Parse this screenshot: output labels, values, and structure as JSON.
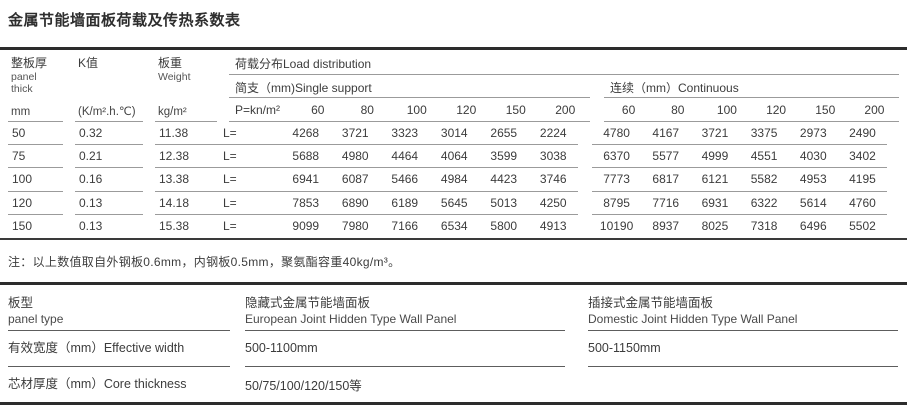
{
  "title": "金属节能墙面板荷载及传热系数表",
  "load_table": {
    "columns": {
      "thick": {
        "zh": "整板厚",
        "en_line1": "panel",
        "en_line2": "thick",
        "unit": "mm"
      },
      "k_value": {
        "zh": "K值",
        "unit": "(K/m².h.℃)"
      },
      "weight": {
        "zh": "板重",
        "en": "Weight",
        "unit": "kg/m²"
      }
    },
    "load_distribution_label": "荷载分布Load distribution",
    "single_support_label": "简支（mm)Single support",
    "continuous_label": "连续（mm）Continuous",
    "p_label": "P=kn/m²",
    "l_label": "L=",
    "span_headers": [
      "60",
      "80",
      "100",
      "120",
      "150",
      "200"
    ],
    "rows": [
      {
        "thick": "50",
        "k": "0.32",
        "weight": "11.38",
        "single": [
          "4268",
          "3721",
          "3323",
          "3014",
          "2655",
          "2224"
        ],
        "continuous": [
          "4780",
          "4167",
          "3721",
          "3375",
          "2973",
          "2490"
        ]
      },
      {
        "thick": "75",
        "k": "0.21",
        "weight": "12.38",
        "single": [
          "5688",
          "4980",
          "4464",
          "4064",
          "3599",
          "3038"
        ],
        "continuous": [
          "6370",
          "5577",
          "4999",
          "4551",
          "4030",
          "3402"
        ]
      },
      {
        "thick": "100",
        "k": "0.16",
        "weight": "13.38",
        "single": [
          "6941",
          "6087",
          "5466",
          "4984",
          "4423",
          "3746"
        ],
        "continuous": [
          "7773",
          "6817",
          "6121",
          "5582",
          "4953",
          "4195"
        ]
      },
      {
        "thick": "120",
        "k": "0.13",
        "weight": "14.18",
        "single": [
          "7853",
          "6890",
          "6189",
          "5645",
          "5013",
          "4250"
        ],
        "continuous": [
          "8795",
          "7716",
          "6931",
          "6322",
          "5614",
          "4760"
        ]
      },
      {
        "thick": "150",
        "k": "0.13",
        "weight": "15.38",
        "single": [
          "9099",
          "7980",
          "7166",
          "6534",
          "5800",
          "4913"
        ],
        "continuous": [
          "10190",
          "8937",
          "8025",
          "7318",
          "6496",
          "5502"
        ]
      }
    ]
  },
  "note": "注：以上数值取自外钢板0.6mm，内钢板0.5mm，聚氨酯容重40kg/m³。",
  "panel_table": {
    "row_type": {
      "label_zh": "板型",
      "label_en": "panel type",
      "hidden_zh": "隐藏式金属节能墙面板",
      "hidden_en": "European Joint Hidden Type Wall Panel",
      "plug_zh": "插接式金属节能墙面板",
      "plug_en": "Domestic Joint Hidden Type Wall Panel"
    },
    "row_width": {
      "label": "有效宽度（mm）Effective width",
      "hidden": "500-1100mm",
      "plug": "500-1150mm"
    },
    "row_core": {
      "label": "芯材厚度（mm）Core thickness",
      "hidden": "50/75/100/120/150等",
      "plug": ""
    }
  }
}
